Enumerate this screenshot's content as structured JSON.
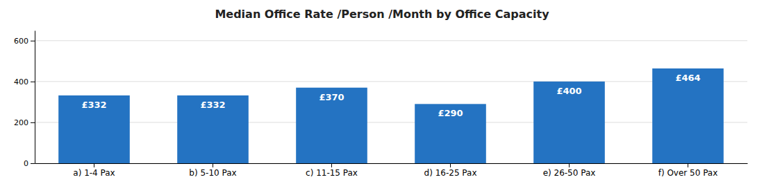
{
  "chart_data": {
    "type": "bar",
    "title": "Median Office Rate /Person /Month by Office Capacity",
    "categories": [
      "a) 1-4 Pax",
      "b) 5-10 Pax",
      "c) 11-15 Pax",
      "d) 16-25 Pax",
      "e) 26-50 Pax",
      "f) Over 50 Pax"
    ],
    "values": [
      332,
      332,
      370,
      290,
      400,
      464
    ],
    "value_labels": [
      "£332",
      "£332",
      "£370",
      "£290",
      "£400",
      "£464"
    ],
    "color": "#2473C2",
    "ylim": [
      0,
      650
    ],
    "yticks": [
      0,
      200,
      400,
      600
    ],
    "grid": true
  }
}
